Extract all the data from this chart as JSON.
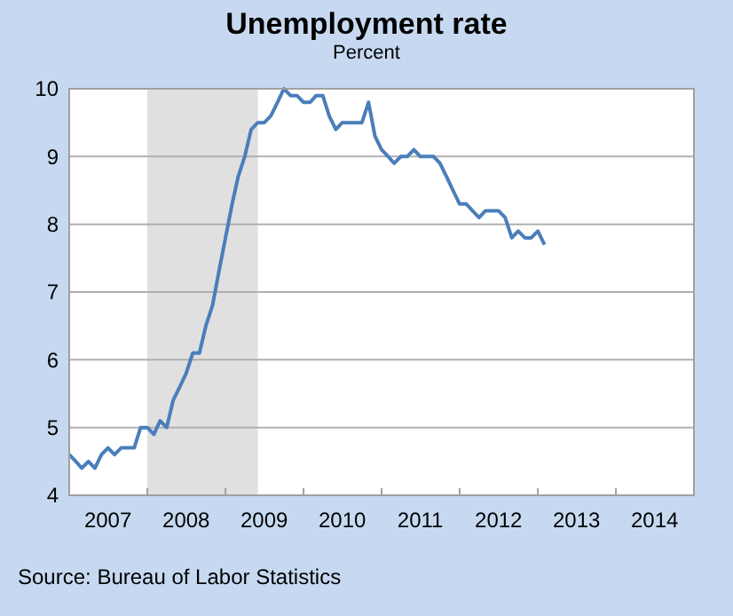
{
  "chart_data": {
    "type": "line",
    "title": "Unemployment rate",
    "subtitle": "Percent",
    "annotations": [
      "Source: Bureau of Labor Statistics"
    ],
    "x": [
      "2007-01",
      "2007-02",
      "2007-03",
      "2007-04",
      "2007-05",
      "2007-06",
      "2007-07",
      "2007-08",
      "2007-09",
      "2007-10",
      "2007-11",
      "2007-12",
      "2008-01",
      "2008-02",
      "2008-03",
      "2008-04",
      "2008-05",
      "2008-06",
      "2008-07",
      "2008-08",
      "2008-09",
      "2008-10",
      "2008-11",
      "2008-12",
      "2009-01",
      "2009-02",
      "2009-03",
      "2009-04",
      "2009-05",
      "2009-06",
      "2009-07",
      "2009-08",
      "2009-09",
      "2009-10",
      "2009-11",
      "2009-12",
      "2010-01",
      "2010-02",
      "2010-03",
      "2010-04",
      "2010-05",
      "2010-06",
      "2010-07",
      "2010-08",
      "2010-09",
      "2010-10",
      "2010-11",
      "2010-12",
      "2011-01",
      "2011-02",
      "2011-03",
      "2011-04",
      "2011-05",
      "2011-06",
      "2011-07",
      "2011-08",
      "2011-09",
      "2011-10",
      "2011-11",
      "2011-12",
      "2012-01",
      "2012-02",
      "2012-03",
      "2012-04",
      "2012-05",
      "2012-06",
      "2012-07",
      "2012-08",
      "2012-09",
      "2012-10",
      "2012-11",
      "2012-12",
      "2013-01",
      "2013-02"
    ],
    "series": [
      {
        "color": "#4a7ebb",
        "values": [
          4.6,
          4.5,
          4.4,
          4.5,
          4.4,
          4.6,
          4.7,
          4.6,
          4.7,
          4.7,
          4.7,
          5.0,
          5.0,
          4.9,
          5.1,
          5.0,
          5.4,
          5.6,
          5.8,
          6.1,
          6.1,
          6.5,
          6.8,
          7.3,
          7.8,
          8.3,
          8.7,
          9.0,
          9.4,
          9.5,
          9.5,
          9.6,
          9.8,
          10.0,
          9.9,
          9.9,
          9.8,
          9.8,
          9.9,
          9.9,
          9.6,
          9.4,
          9.5,
          9.5,
          9.5,
          9.5,
          9.8,
          9.3,
          9.1,
          9.0,
          8.9,
          9.0,
          9.0,
          9.1,
          9.0,
          9.0,
          9.0,
          8.9,
          8.7,
          8.5,
          8.3,
          8.3,
          8.2,
          8.1,
          8.2,
          8.2,
          8.2,
          8.1,
          7.8,
          7.9,
          7.8,
          7.8,
          7.9,
          7.7
        ]
      }
    ],
    "xlim": [
      "2007-01",
      "2015-01"
    ],
    "xticks": [
      {
        "value": "2007-07",
        "label": "2007"
      },
      {
        "value": "2008-01",
        "label": null
      },
      {
        "value": "2008-07",
        "label": "2008"
      },
      {
        "value": "2009-01",
        "label": null
      },
      {
        "value": "2009-07",
        "label": "2009"
      },
      {
        "value": "2010-01",
        "label": null
      },
      {
        "value": "2010-07",
        "label": "2010"
      },
      {
        "value": "2011-01",
        "label": null
      },
      {
        "value": "2011-07",
        "label": "2011"
      },
      {
        "value": "2012-01",
        "label": null
      },
      {
        "value": "2012-07",
        "label": "2012"
      },
      {
        "value": "2013-01",
        "label": null
      },
      {
        "value": "2013-07",
        "label": "2013"
      },
      {
        "value": "2014-01",
        "label": null
      },
      {
        "value": "2014-07",
        "label": "2014"
      }
    ],
    "ylim": [
      4,
      10
    ],
    "yticks": [
      4,
      5,
      6,
      7,
      8,
      9,
      10
    ],
    "grid": "y",
    "bands": [
      {
        "axis": "x",
        "from": "2008-01",
        "to": "2009-06",
        "color": "#e0e0e0"
      }
    ],
    "line_style": "solid",
    "marker": "none"
  }
}
